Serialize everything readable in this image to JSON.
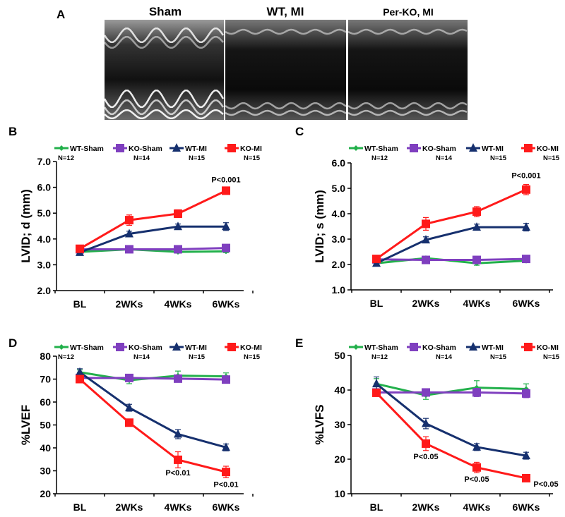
{
  "panel_a": {
    "letter": "A",
    "labels": [
      "Sham",
      "WT, MI",
      "Per-KO, MI"
    ]
  },
  "chart_data": [
    {
      "panel": "B",
      "type": "line",
      "categories": [
        "BL",
        "2WKs",
        "4WKs",
        "6WKs"
      ],
      "ylabel": "LVID; d (mm)",
      "ylim": [
        2.0,
        7.0
      ],
      "yticks": [
        "2.0",
        "3.0",
        "4.0",
        "5.0",
        "6.0",
        "7.0"
      ],
      "series": [
        {
          "name": "WT-Sham",
          "n": "N=12",
          "color": "#22b04b",
          "marker": "diamond",
          "values": [
            3.5,
            3.6,
            3.5,
            3.52
          ],
          "errors": [
            0.05,
            0.05,
            0.05,
            0.05
          ]
        },
        {
          "name": "KO-Sham",
          "n": "N=14",
          "color": "#7f3fbf",
          "marker": "square",
          "values": [
            3.6,
            3.6,
            3.6,
            3.65
          ],
          "errors": [
            0.05,
            0.08,
            0.05,
            0.05
          ]
        },
        {
          "name": "WT-MI",
          "n": "N=15",
          "color": "#16306e",
          "marker": "triangle",
          "values": [
            3.48,
            4.2,
            4.48,
            4.48
          ],
          "errors": [
            0.05,
            0.1,
            0.1,
            0.15
          ]
        },
        {
          "name": "KO-MI",
          "n": "N=15",
          "color": "#ff1a1a",
          "marker": "square",
          "values": [
            3.62,
            4.73,
            4.98,
            5.87
          ],
          "errors": [
            0.05,
            0.2,
            0.15,
            0.1
          ]
        }
      ],
      "annotations": [
        {
          "text": "P<0.001",
          "category": "6WKs",
          "value": 6.2
        }
      ]
    },
    {
      "panel": "C",
      "type": "line",
      "categories": [
        "BL",
        "2WKs",
        "4WKs",
        "6WKs"
      ],
      "ylabel": "LVID; s (mm)",
      "ylim": [
        1.0,
        6.0
      ],
      "yticks": [
        "1.0",
        "2.0",
        "3.0",
        "4.0",
        "5.0",
        "6.0"
      ],
      "series": [
        {
          "name": "WT-Sham",
          "n": "N=12",
          "color": "#22b04b",
          "marker": "diamond",
          "values": [
            2.05,
            2.25,
            2.05,
            2.15
          ],
          "errors": [
            0.05,
            0.05,
            0.08,
            0.05
          ]
        },
        {
          "name": "KO-Sham",
          "n": "N=14",
          "color": "#7f3fbf",
          "marker": "square",
          "values": [
            2.2,
            2.18,
            2.18,
            2.22
          ],
          "errors": [
            0.05,
            0.08,
            0.05,
            0.05
          ]
        },
        {
          "name": "WT-MI",
          "n": "N=15",
          "color": "#16306e",
          "marker": "triangle",
          "values": [
            2.05,
            2.97,
            3.47,
            3.47
          ],
          "errors": [
            0.05,
            0.12,
            0.12,
            0.15
          ]
        },
        {
          "name": "KO-MI",
          "n": "N=15",
          "color": "#ff1a1a",
          "marker": "square",
          "values": [
            2.22,
            3.6,
            4.08,
            4.95
          ],
          "errors": [
            0.05,
            0.25,
            0.2,
            0.2
          ]
        }
      ],
      "annotations": [
        {
          "text": "P<0.001",
          "category": "6WKs",
          "value": 5.4
        }
      ]
    },
    {
      "panel": "D",
      "type": "line",
      "categories": [
        "BL",
        "2WKs",
        "4WKs",
        "6WKs"
      ],
      "ylabel": "%LVEF",
      "ylim": [
        20,
        80
      ],
      "yticks": [
        "20",
        "30",
        "40",
        "50",
        "60",
        "70",
        "80"
      ],
      "series": [
        {
          "name": "WT-Sham",
          "n": "N=12",
          "color": "#22b04b",
          "marker": "diamond",
          "values": [
            73,
            69.5,
            71.5,
            71.2
          ],
          "errors": [
            1,
            1.5,
            2,
            1.5
          ]
        },
        {
          "name": "KO-Sham",
          "n": "N=14",
          "color": "#7f3fbf",
          "marker": "square",
          "values": [
            70.5,
            70.5,
            70.2,
            69.8
          ],
          "errors": [
            1,
            1,
            1.5,
            1.5
          ]
        },
        {
          "name": "WT-MI",
          "n": "N=15",
          "color": "#16306e",
          "marker": "triangle",
          "values": [
            73,
            57.5,
            46,
            40.2
          ],
          "errors": [
            1.5,
            1.5,
            2,
            1.5
          ]
        },
        {
          "name": "KO-MI",
          "n": "N=15",
          "color": "#ff1a1a",
          "marker": "square",
          "values": [
            70,
            51,
            34.8,
            29.5
          ],
          "errors": [
            1,
            1,
            3.5,
            2.5
          ]
        }
      ],
      "annotations": [
        {
          "text": "P<0.01",
          "category": "4WKs",
          "value": 28
        },
        {
          "text": "P<0.01",
          "category": "6WKs",
          "value": 23
        }
      ]
    },
    {
      "panel": "E",
      "type": "line",
      "categories": [
        "BL",
        "2WKs",
        "4WKs",
        "6WKs"
      ],
      "ylabel": "%LVFS",
      "ylim": [
        10,
        50
      ],
      "yticks": [
        "10",
        "20",
        "30",
        "40",
        "50"
      ],
      "series": [
        {
          "name": "WT-Sham",
          "n": "N=12",
          "color": "#22b04b",
          "marker": "diamond",
          "values": [
            41.8,
            38.5,
            40.7,
            40.3
          ],
          "errors": [
            1.5,
            1.2,
            2,
            1.5
          ]
        },
        {
          "name": "KO-Sham",
          "n": "N=14",
          "color": "#7f3fbf",
          "marker": "square",
          "values": [
            39.3,
            39.3,
            39.3,
            39
          ],
          "errors": [
            1,
            1,
            1.2,
            1.2
          ]
        },
        {
          "name": "WT-MI",
          "n": "N=15",
          "color": "#16306e",
          "marker": "triangle",
          "values": [
            41.8,
            30.3,
            23.5,
            21
          ],
          "errors": [
            2,
            1.5,
            1,
            1
          ]
        },
        {
          "name": "KO-MI",
          "n": "N=15",
          "color": "#ff1a1a",
          "marker": "square",
          "values": [
            39.2,
            24.5,
            17.6,
            14.5
          ],
          "errors": [
            1,
            2,
            1.5,
            1
          ]
        }
      ],
      "annotations": [
        {
          "text": "P<0.05",
          "category": "2WKs",
          "value": 20
        },
        {
          "text": "P<0.05",
          "category": "4WKs",
          "value": 13.5
        },
        {
          "text": "P<0.05",
          "category": "6WKs",
          "value": 12
        }
      ]
    }
  ]
}
